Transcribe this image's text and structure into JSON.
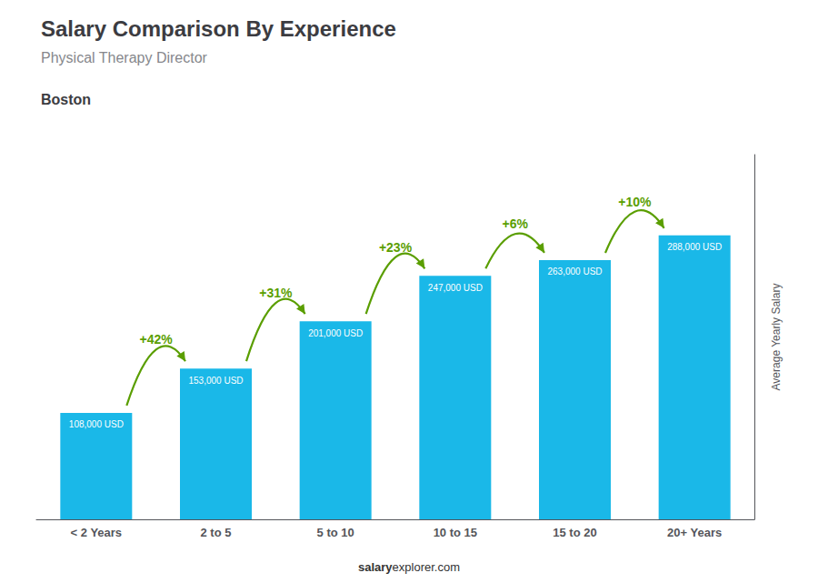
{
  "chart_data": {
    "type": "bar",
    "title": "Salary Comparison By Experience",
    "subtitle": "Physical Therapy Director",
    "city": "Boston",
    "categories": [
      "< 2 Years",
      "2 to 5",
      "5 to 10",
      "10 to 15",
      "15 to 20",
      "20+ Years"
    ],
    "values": [
      108000,
      153000,
      201000,
      247000,
      263000,
      288000
    ],
    "value_labels": [
      "108,000 USD",
      "153,000 USD",
      "201,000 USD",
      "247,000 USD",
      "263,000 USD",
      "288,000 USD"
    ],
    "data_labels": true,
    "color": "#1ab8e8",
    "ylabel": "Average Yearly Salary",
    "ylim": [
      0,
      370000
    ],
    "yticks": [],
    "tick_labels": "x",
    "grid": false,
    "annotations": [
      {
        "text": "+42%",
        "from": "< 2 Years",
        "to": "2 to 5"
      },
      {
        "text": "+31%",
        "from": "2 to 5",
        "to": "5 to 10"
      },
      {
        "text": "+23%",
        "from": "5 to 10",
        "to": "10 to 15"
      },
      {
        "text": "+6%",
        "from": "10 to 15",
        "to": "15 to 20"
      },
      {
        "text": "+10%",
        "from": "15 to 20",
        "to": "20+ Years"
      }
    ],
    "footer": [
      "salary",
      "explorer.com"
    ]
  }
}
